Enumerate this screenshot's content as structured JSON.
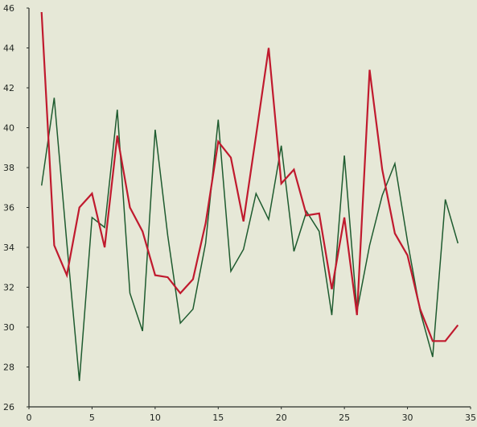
{
  "chart_data": {
    "type": "line",
    "title": "",
    "xlabel": "",
    "ylabel": "",
    "xlim": [
      0,
      35
    ],
    "ylim": [
      26,
      46
    ],
    "xticks": [
      0,
      5,
      10,
      15,
      20,
      25,
      30,
      35
    ],
    "yticks": [
      26,
      28,
      30,
      32,
      34,
      36,
      38,
      40,
      42,
      44,
      46
    ],
    "grid": false,
    "legend": "none",
    "series": [
      {
        "color": "#1e5b2f",
        "x": [
          1,
          2,
          3,
          4,
          5,
          6,
          7,
          8,
          9,
          10,
          11,
          12,
          13,
          14,
          15,
          16,
          17,
          18,
          19,
          20,
          21,
          22,
          23,
          24,
          25,
          26,
          27,
          28,
          29,
          30,
          31,
          32,
          33,
          34
        ],
        "values": [
          37.1,
          41.5,
          34.2,
          27.3,
          35.5,
          35.0,
          40.9,
          31.7,
          29.8,
          39.9,
          34.6,
          30.2,
          30.9,
          34.2,
          40.4,
          32.8,
          33.9,
          36.7,
          35.4,
          39.1,
          33.8,
          35.8,
          34.8,
          30.6,
          38.6,
          30.8,
          34.1,
          36.6,
          38.2,
          34.3,
          30.8,
          28.5,
          36.4,
          34.2
        ]
      },
      {
        "color": "#c01a2e",
        "x": [
          1,
          2,
          3,
          4,
          5,
          6,
          7,
          8,
          9,
          10,
          11,
          12,
          13,
          14,
          15,
          16,
          17,
          18,
          19,
          20,
          21,
          22,
          23,
          24,
          25,
          26,
          27,
          28,
          29,
          30,
          31,
          32,
          33,
          34
        ],
        "values": [
          45.8,
          34.1,
          32.6,
          36.0,
          36.7,
          34.0,
          39.6,
          36.0,
          34.8,
          32.6,
          32.5,
          31.7,
          32.4,
          35.2,
          39.3,
          38.5,
          35.3,
          39.6,
          44.0,
          37.2,
          37.9,
          35.6,
          35.7,
          31.9,
          35.5,
          30.6,
          42.9,
          37.9,
          34.7,
          33.6,
          30.9,
          29.3,
          29.3,
          30.1
        ]
      }
    ]
  }
}
